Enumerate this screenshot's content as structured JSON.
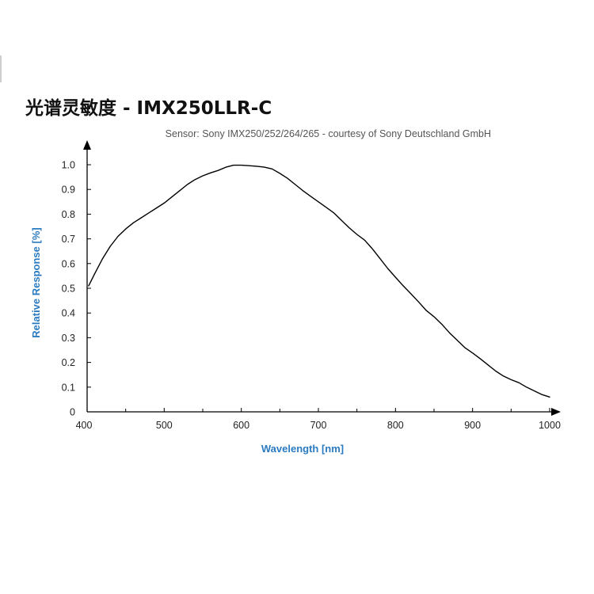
{
  "chart_data": {
    "type": "line",
    "title": "光谱灵敏度 - IMX250LLR-C",
    "subtitle": "Sensor: Sony IMX250/252/264/265 - courtesy of Sony Deutschland GmbH",
    "xlabel": "Wavelength [nm]",
    "ylabel": "Relative Response [%]",
    "xlim": [
      400,
      1000
    ],
    "ylim": [
      0,
      1.0
    ],
    "x_ticks": [
      "400",
      "500",
      "600",
      "700",
      "800",
      "900",
      "1000"
    ],
    "y_ticks": [
      "0",
      "0.1",
      "0.2",
      "0.3",
      "0.4",
      "0.5",
      "0.6",
      "0.7",
      "0.8",
      "0.9",
      "1.0"
    ],
    "grid": false,
    "series": [
      {
        "x": [
          402,
          410,
          420,
          430,
          440,
          450,
          460,
          470,
          480,
          490,
          500,
          510,
          520,
          530,
          540,
          550,
          560,
          570,
          580,
          590,
          600,
          610,
          620,
          630,
          640,
          650,
          660,
          670,
          680,
          690,
          700,
          710,
          720,
          730,
          740,
          750,
          760,
          770,
          780,
          790,
          800,
          810,
          820,
          830,
          840,
          850,
          860,
          870,
          880,
          890,
          900,
          910,
          920,
          930,
          940,
          950,
          960,
          970,
          980,
          990,
          1000
        ],
        "y": [
          0.51,
          0.56,
          0.62,
          0.67,
          0.71,
          0.74,
          0.765,
          0.785,
          0.805,
          0.825,
          0.845,
          0.87,
          0.895,
          0.92,
          0.94,
          0.955,
          0.967,
          0.977,
          0.99,
          0.998,
          0.998,
          0.996,
          0.994,
          0.99,
          0.983,
          0.965,
          0.945,
          0.92,
          0.895,
          0.872,
          0.85,
          0.828,
          0.805,
          0.775,
          0.745,
          0.718,
          0.695,
          0.66,
          0.62,
          0.58,
          0.545,
          0.51,
          0.478,
          0.445,
          0.41,
          0.385,
          0.355,
          0.32,
          0.29,
          0.26,
          0.238,
          0.215,
          0.19,
          0.165,
          0.145,
          0.13,
          0.118,
          0.1,
          0.085,
          0.07,
          0.06
        ]
      }
    ]
  },
  "colors": {
    "axis_title": "#2a7bc1",
    "line": "#000000",
    "title": "#111111",
    "subtitle": "#555555"
  }
}
